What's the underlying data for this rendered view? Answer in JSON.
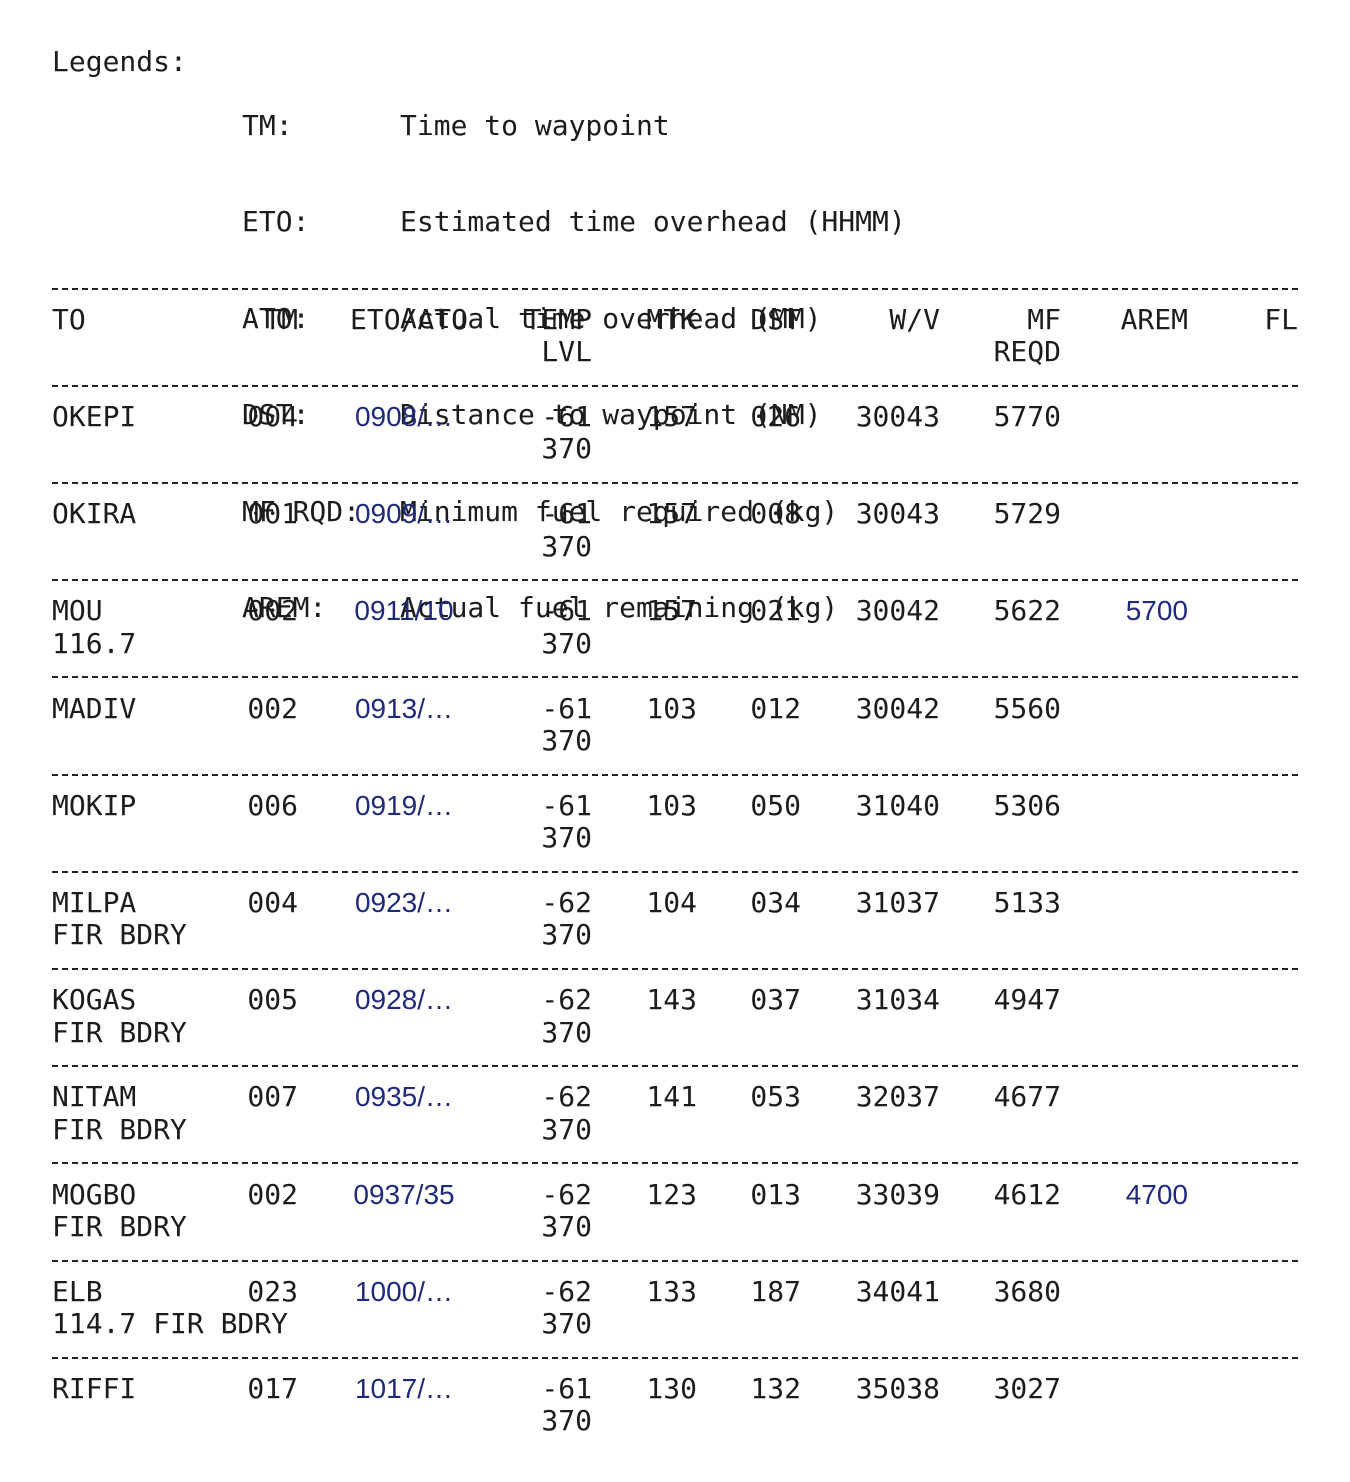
{
  "legend": {
    "title": "Legends:",
    "items": [
      {
        "key": "TM:",
        "desc": "Time to waypoint"
      },
      {
        "key": "ETO:",
        "desc": "Estimated time overhead (HHMM)"
      },
      {
        "key": "ATO:",
        "desc": "Actual time overhead (MM)"
      },
      {
        "key": "DST:",
        "desc": "Distance to waypoint (NM)"
      },
      {
        "key": "MF RQD:",
        "desc": "Minimum fuel required (kg)"
      },
      {
        "key": "AREM:",
        "desc": "Actual fuel remaining (kg)"
      }
    ]
  },
  "headers": {
    "to": "TO",
    "tm": "TM",
    "eto_ato": "ETO/ATO",
    "temp": "TEMP",
    "lvl": "LVL",
    "mtk": "MTK",
    "dst": "DST",
    "wv": "W/V",
    "mf": "MF",
    "reqd": "REQD",
    "arem": "AREM",
    "fl": "FL"
  },
  "rows": [
    {
      "to": "OKEPI",
      "to2": "",
      "tm": "004",
      "eto": "0908/…",
      "temp": "-61",
      "lvl": "370",
      "mtk": "157",
      "dst": "026",
      "wv": "30043",
      "mf": "5770",
      "arem": ""
    },
    {
      "to": "OKIRA",
      "to2": "",
      "tm": "001",
      "eto": "0909/…",
      "temp": "-61",
      "lvl": "370",
      "mtk": "157",
      "dst": "008",
      "wv": "30043",
      "mf": "5729",
      "arem": ""
    },
    {
      "to": "MOU",
      "to2": "116.7",
      "tm": "002",
      "eto": "0911/10",
      "temp": "-61",
      "lvl": "370",
      "mtk": "157",
      "dst": "021",
      "wv": "30042",
      "mf": "5622",
      "arem": "5700"
    },
    {
      "to": "MADIV",
      "to2": "",
      "tm": "002",
      "eto": "0913/…",
      "temp": "-61",
      "lvl": "370",
      "mtk": "103",
      "dst": "012",
      "wv": "30042",
      "mf": "5560",
      "arem": ""
    },
    {
      "to": "MOKIP",
      "to2": "",
      "tm": "006",
      "eto": "0919/…",
      "temp": "-61",
      "lvl": "370",
      "mtk": "103",
      "dst": "050",
      "wv": "31040",
      "mf": "5306",
      "arem": ""
    },
    {
      "to": "MILPA",
      "to2": "FIR BDRY",
      "tm": "004",
      "eto": "0923/…",
      "temp": "-62",
      "lvl": "370",
      "mtk": "104",
      "dst": "034",
      "wv": "31037",
      "mf": "5133",
      "arem": ""
    },
    {
      "to": "KOGAS",
      "to2": "FIR BDRY",
      "tm": "005",
      "eto": "0928/…",
      "temp": "-62",
      "lvl": "370",
      "mtk": "143",
      "dst": "037",
      "wv": "31034",
      "mf": "4947",
      "arem": ""
    },
    {
      "to": "NITAM",
      "to2": "FIR BDRY",
      "tm": "007",
      "eto": "0935/…",
      "temp": "-62",
      "lvl": "370",
      "mtk": "141",
      "dst": "053",
      "wv": "32037",
      "mf": "4677",
      "arem": ""
    },
    {
      "to": "MOGBO",
      "to2": "FIR BDRY",
      "tm": "002",
      "eto": "0937/35",
      "temp": "-62",
      "lvl": "370",
      "mtk": "123",
      "dst": "013",
      "wv": "33039",
      "mf": "4612",
      "arem": "4700"
    },
    {
      "to": "ELB",
      "to2": "114.7 FIR BDRY",
      "tm": "023",
      "eto": "1000/…",
      "temp": "-62",
      "lvl": "370",
      "mtk": "133",
      "dst": "187",
      "wv": "34041",
      "mf": "3680",
      "arem": ""
    },
    {
      "to": "RIFFI",
      "to2": "",
      "tm": "017",
      "eto": "1017/…",
      "temp": "-61",
      "lvl": "370",
      "mtk": "130",
      "dst": "132",
      "wv": "35038",
      "mf": "3027",
      "arem": ""
    }
  ]
}
